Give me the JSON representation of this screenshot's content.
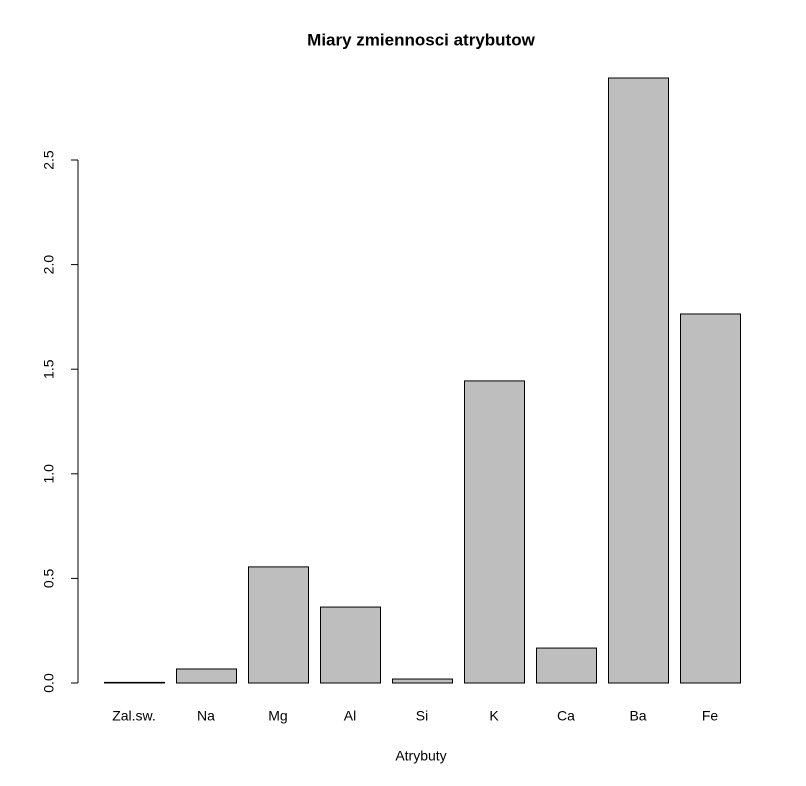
{
  "chart_data": {
    "type": "bar",
    "title": "Miary zmiennosci atrybutow",
    "x_label": "Atrybuty",
    "categories": [
      "Zal.sw.",
      "Na",
      "Mg",
      "Al",
      "Si",
      "K",
      "Ca",
      "Ba",
      "Fe"
    ],
    "values": [
      0.003,
      0.067,
      0.555,
      0.363,
      0.019,
      1.444,
      0.167,
      2.892,
      1.764
    ],
    "color": "#bebebe",
    "ylim": [
      0,
      2.892
    ],
    "yticks": [
      {
        "value": 0,
        "label": "0.0"
      },
      0.5,
      {
        "value": 1,
        "label": "1.0"
      },
      1.5,
      {
        "value": 2,
        "label": "2.0"
      },
      2.5
    ]
  }
}
